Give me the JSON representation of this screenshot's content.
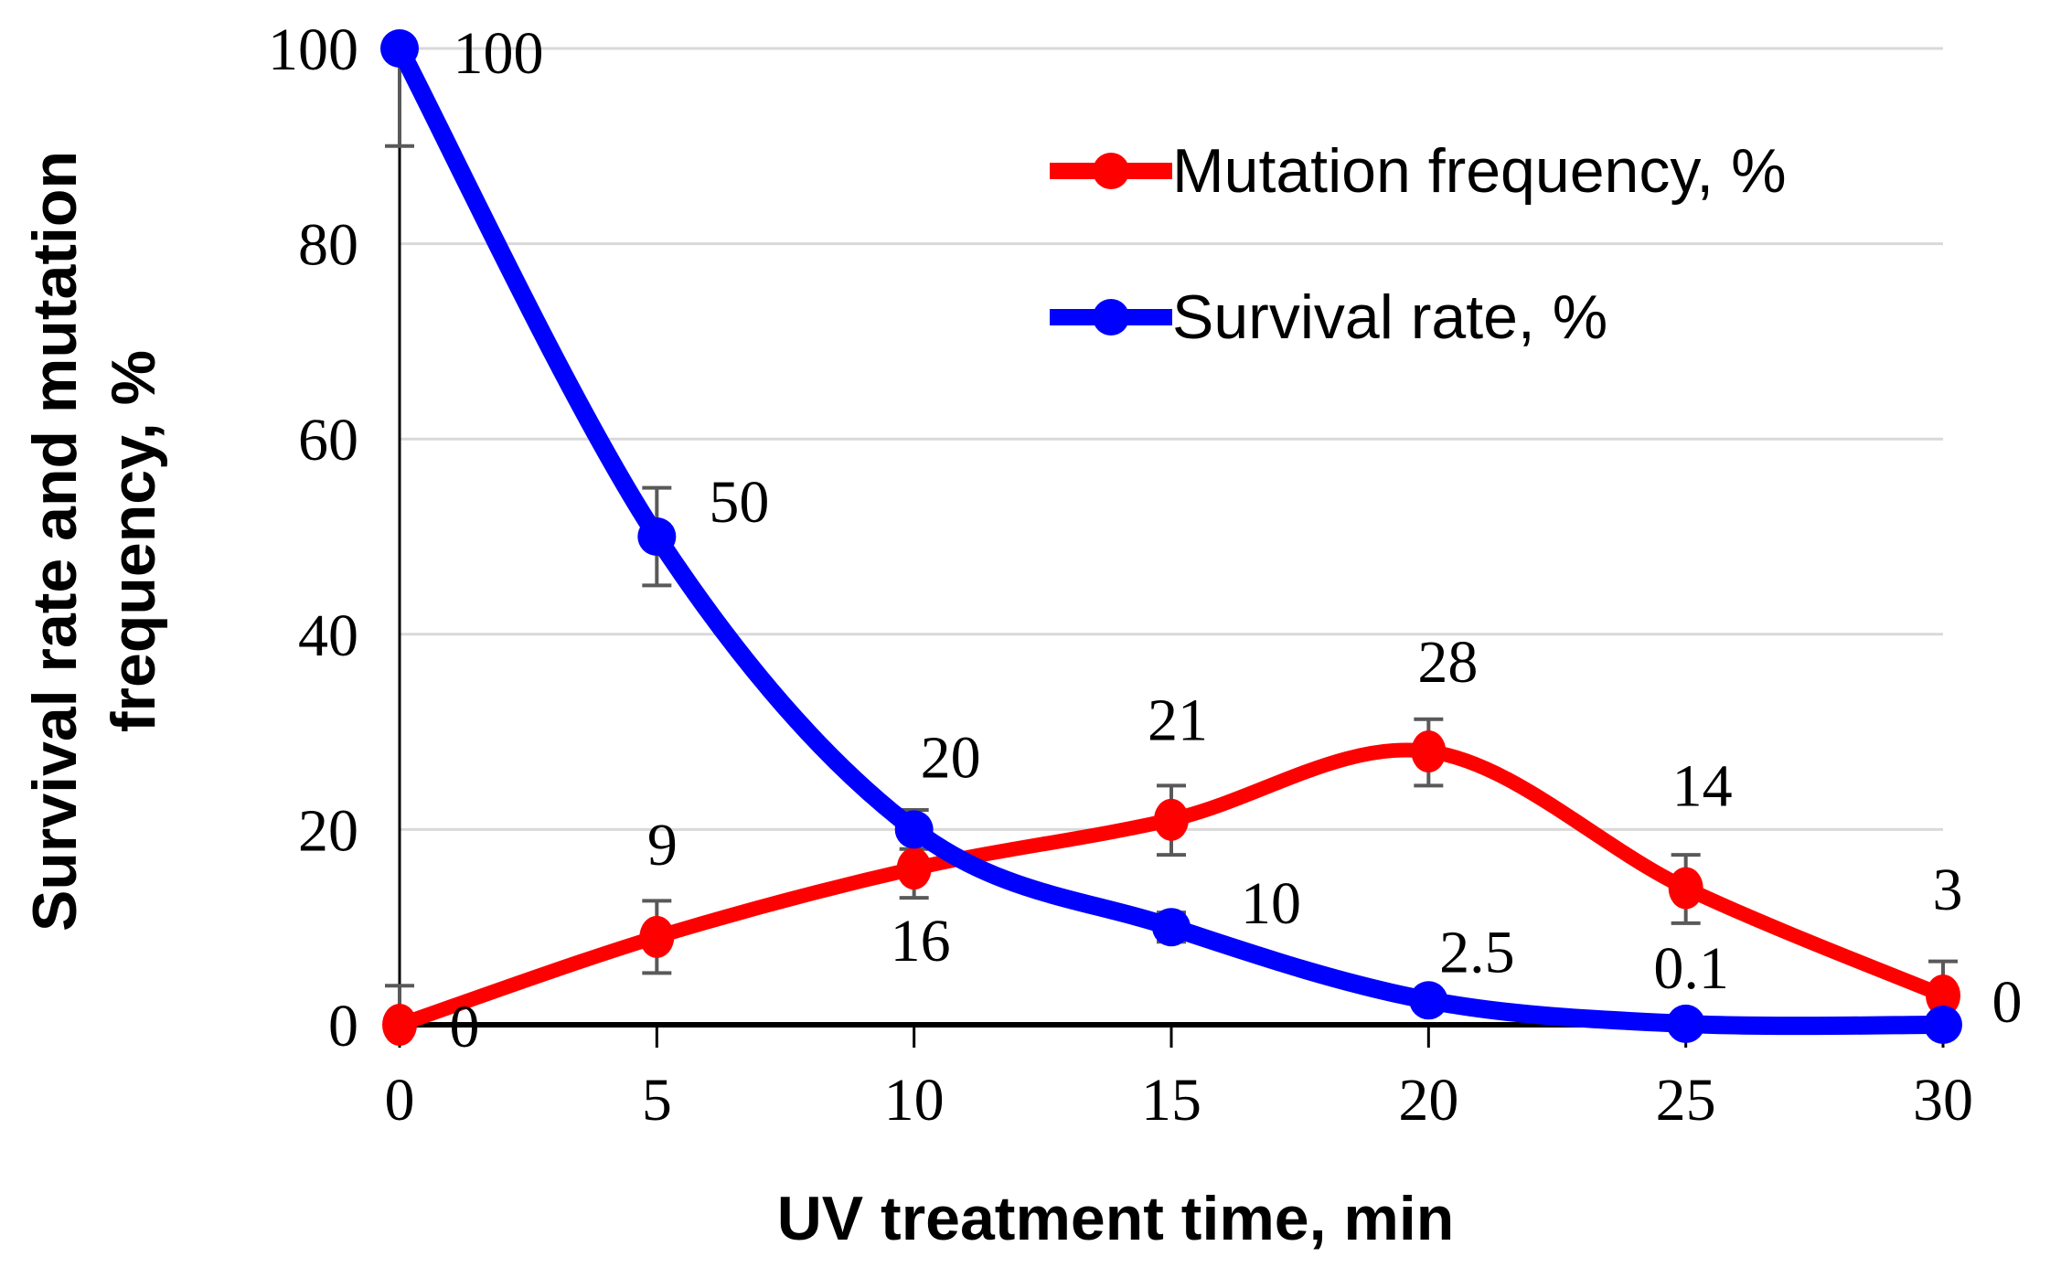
{
  "chart_data": {
    "type": "line",
    "x": [
      0,
      5,
      10,
      15,
      20,
      25,
      30
    ],
    "xlabel": "UV treatment time, min",
    "ylabel": "Survival rate and mutation frequency, %",
    "ylabel_line1": "Survival rate and mutation",
    "ylabel_line2": "frequency, %",
    "xlim": [
      0,
      30
    ],
    "ylim": [
      0,
      100
    ],
    "xticks": [
      0,
      5,
      10,
      15,
      20,
      25,
      30
    ],
    "yticks": [
      0,
      20,
      40,
      60,
      80,
      100
    ],
    "grid": true,
    "legend_position": "inside-top-right",
    "series": [
      {
        "name": "Mutation frequency, %",
        "color": "#ff0000",
        "marker": "circle",
        "values": [
          0,
          9,
          16,
          21,
          28,
          14,
          3
        ],
        "point_labels": [
          "0",
          "9",
          "16",
          "21",
          "28",
          "14",
          "3"
        ],
        "label_dx": [
          71,
          6,
          7,
          7,
          21,
          18,
          5
        ],
        "label_dy": [
          1,
          -102,
          78,
          -110,
          -99,
          -113,
          -117
        ],
        "err_plus": [
          4,
          3.7,
          3,
          3.5,
          3.3,
          3.4,
          3.5
        ],
        "err_minus": [
          0,
          3.7,
          3,
          3.6,
          3.5,
          3.6,
          3.5
        ]
      },
      {
        "name": "Survival rate, %",
        "color": "#0000ff",
        "marker": "circle",
        "values": [
          100,
          50,
          20,
          10,
          2.5,
          0.1,
          0
        ],
        "point_labels": [
          "100",
          "50",
          "20",
          "10",
          "2.5",
          "0.1",
          "0"
        ],
        "label_dx": [
          108,
          90,
          40,
          109,
          53,
          6,
          70
        ],
        "label_dy": [
          4,
          -39,
          -80,
          -27,
          -54,
          -62,
          -26
        ],
        "err_plus": [
          0,
          5,
          2,
          1.5,
          1,
          0,
          0
        ],
        "err_minus": [
          10,
          5,
          2,
          1.5,
          1,
          0,
          0
        ]
      }
    ]
  },
  "colors": {
    "mutation_frequency": "#ff0000",
    "survival_rate": "#0000ff",
    "gridline": "#d9d9d9",
    "error_bar": "#595959",
    "axis": "#000000",
    "text": "#000000",
    "background": "#ffffff"
  }
}
